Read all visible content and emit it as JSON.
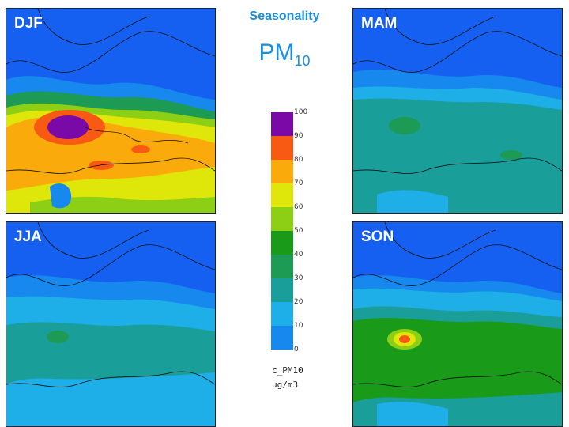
{
  "title": "Seasonality",
  "pollutant": {
    "main": "PM",
    "sub": "10"
  },
  "panels": [
    {
      "id": "DJF",
      "label": "DJF"
    },
    {
      "id": "MAM",
      "label": "MAM"
    },
    {
      "id": "JJA",
      "label": "JJA"
    },
    {
      "id": "SON",
      "label": "SON"
    }
  ],
  "legend": {
    "variable": "c_PM10",
    "unit": "ug/m3",
    "ticks": [
      "100",
      "90",
      "80",
      "70",
      "60",
      "50",
      "40",
      "30",
      "20",
      "10",
      "0"
    ],
    "colors": [
      "#7a0aa8",
      "#f85a14",
      "#faaa0a",
      "#dfe60a",
      "#8ccf14",
      "#199a19",
      "#1d9a54",
      "#1a9e9a",
      "#1eaee8",
      "#1688ee",
      "#1560f0"
    ]
  }
}
